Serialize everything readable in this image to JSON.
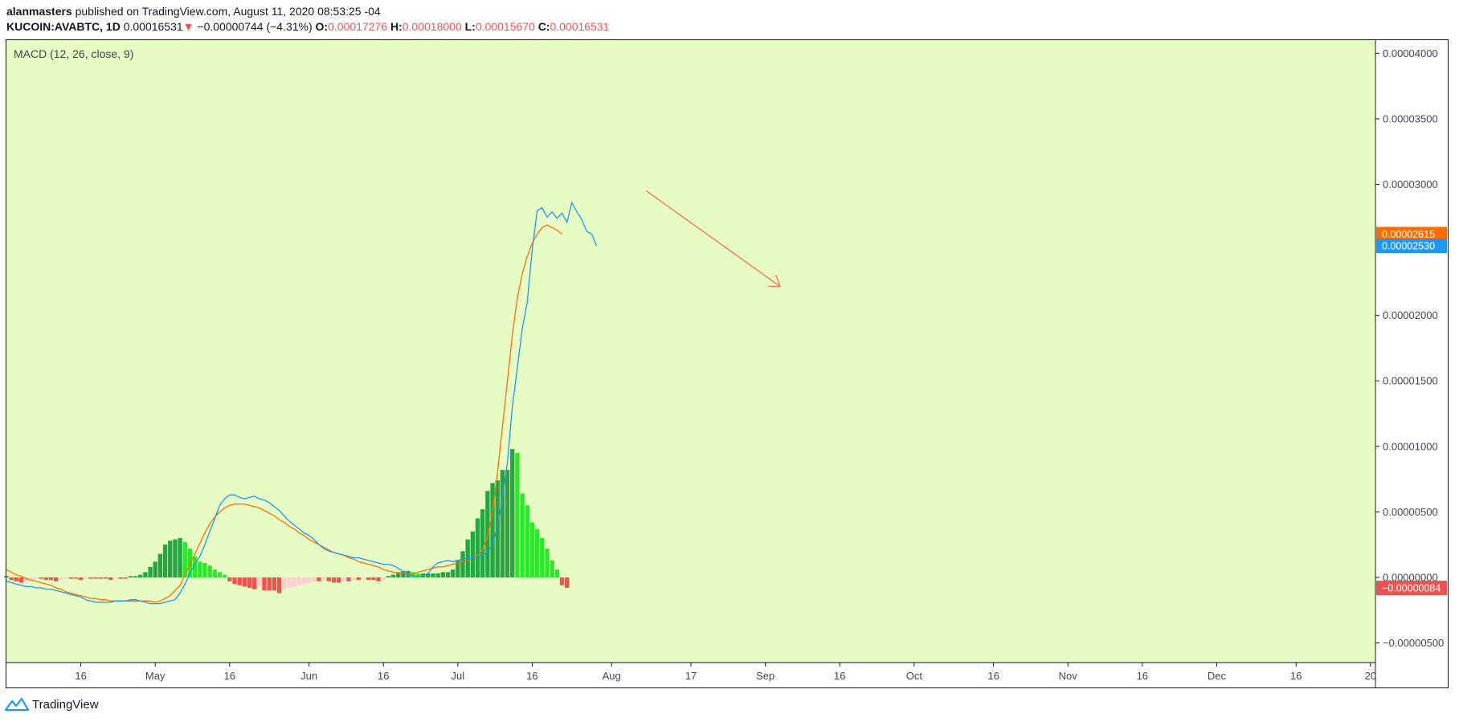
{
  "header": {
    "author": "alanmasters",
    "published_text": "published on TradingView.com, August 11, 2020 08:53:25 -04",
    "symbol": "KUCOIN:AVABTC, 1D",
    "price": "0.00016531",
    "change_arrow": "▼",
    "change": "−0.00000744 (−4.31%)",
    "open_label": "O:",
    "open": "0.00017276",
    "high_label": "H:",
    "high": "0.00018000",
    "low_label": "L:",
    "low": "0.00015670",
    "close_label": "C:",
    "close": "0.00016531"
  },
  "footer": {
    "brand": "TradingView"
  },
  "colors": {
    "background": "#e6fcc4",
    "macd_line": "#2196f3",
    "signal_line": "#ff6d00",
    "hist_up_strong": "#26a641",
    "hist_up_weak": "#2ee62a",
    "hist_down_strong": "#ef5350",
    "hist_down_weak": "#ffcdd2",
    "arrow": "#ef8060"
  },
  "chart_data": {
    "type": "line",
    "indicator": "MACD (12, 26, close, 9)",
    "y_ticks": [
      "0.00004000",
      "0.00003500",
      "0.00003000",
      "0.00002000",
      "0.00001500",
      "0.00001000",
      "0.00000500",
      "0.00000000",
      "−0.00000500"
    ],
    "y_tick_values": [
      4e-05,
      3.5e-05,
      3e-05,
      2e-05,
      1.5e-05,
      1e-05,
      5e-06,
      0,
      -5e-06
    ],
    "ylim": [
      -6.5e-06,
      4.1e-05
    ],
    "x_ticks": [
      "16",
      "May",
      "16",
      "Jun",
      "16",
      "Jul",
      "16",
      "Aug",
      "17",
      "Sep",
      "16",
      "Oct",
      "16",
      "Nov",
      "16",
      "Dec",
      "16",
      "20"
    ],
    "x_tick_days": [
      16,
      31,
      46,
      62,
      77,
      92,
      107,
      123,
      139,
      154,
      169,
      184,
      200,
      215,
      230,
      245,
      261,
      276
    ],
    "x_origin_date": "2020-04-01",
    "xlim_days": [
      1,
      277
    ],
    "last_values": {
      "signal": "0.00002615",
      "macd": "0.00002530",
      "histogram": "−0.00000084"
    },
    "series": [
      {
        "name": "MACD",
        "values": [
          -3e-07,
          -4e-07,
          -5e-07,
          -6e-07,
          -7e-07,
          -7e-07,
          -8e-07,
          -8e-07,
          -9e-07,
          -9e-07,
          -1e-06,
          -1.1e-06,
          -1.2e-06,
          -1.3e-06,
          -1.4e-06,
          -1.5e-06,
          -1.7e-06,
          -1.8e-06,
          -1.9e-06,
          -1.9e-06,
          -1.9e-06,
          -1.9e-06,
          -1.8e-06,
          -1.8e-06,
          -1.8e-06,
          -1.7e-06,
          -1.7e-06,
          -1.8e-06,
          -1.9e-06,
          -2e-06,
          -2e-06,
          -2e-06,
          -1.9e-06,
          -1.8e-06,
          -1.7e-06,
          -1.2e-06,
          -5e-07,
          3e-07,
          1e-06,
          1.6e-06,
          2.5e-06,
          3.5e-06,
          4.5e-06,
          5.5e-06,
          6e-06,
          6.3e-06,
          6.3e-06,
          6.1e-06,
          6e-06,
          6.1e-06,
          6.2e-06,
          6e-06,
          5.9e-06,
          5.7e-06,
          5.4e-06,
          5.1e-06,
          4.7e-06,
          4.3e-06,
          4e-06,
          3.7e-06,
          3.4e-06,
          3.2e-06,
          2.9e-06,
          2.5e-06,
          2.2e-06,
          2e-06,
          1.9e-06,
          1.8e-06,
          1.7e-06,
          1.6e-06,
          1.5e-06,
          1.5e-06,
          1.4e-06,
          1.3e-06,
          1.2e-06,
          1.1e-06,
          1e-06,
          1e-06,
          9e-07,
          7e-07,
          4e-07,
          2e-07,
          1e-07,
          1e-07,
          1e-07,
          3e-07,
          8e-07,
          1.1e-06,
          1.2e-06,
          1.3e-06,
          1.2e-06,
          1.3e-06,
          1.4e-06,
          1.5e-06,
          1.5e-06,
          1.6e-06,
          1.7e-06,
          1.9e-06,
          2.5e-06,
          4e-06,
          6e-06,
          8.8e-06,
          1.3e-05,
          1.6e-05,
          1.9e-05,
          2.1e-05,
          2.5e-05,
          2.8e-05,
          2.82e-05,
          2.75e-05,
          2.79e-05,
          2.74e-05,
          2.78e-05,
          2.71e-05,
          2.86e-05,
          2.79e-05,
          2.73e-05,
          2.64e-05,
          2.62e-05,
          2.53e-05
        ]
      },
      {
        "name": "Signal",
        "values": [
          6e-07,
          4e-07,
          2e-07,
          1e-07,
          -1e-07,
          -2e-07,
          -3e-07,
          -4e-07,
          -5e-07,
          -6e-07,
          -8e-07,
          -9e-07,
          -1.1e-06,
          -1.2e-06,
          -1.3e-06,
          -1.4e-06,
          -1.5e-06,
          -1.6e-06,
          -1.6e-06,
          -1.7e-06,
          -1.7e-06,
          -1.8e-06,
          -1.8e-06,
          -1.8e-06,
          -1.8e-06,
          -1.8e-06,
          -1.8e-06,
          -1.8e-06,
          -1.8e-06,
          -1.8e-06,
          -1.9e-06,
          -1.8e-06,
          -1.6e-06,
          -1.4e-06,
          -1e-06,
          -6e-07,
          2e-07,
          1e-06,
          1.8e-06,
          2.6e-06,
          3.4e-06,
          4.1e-06,
          4.6e-06,
          5e-06,
          5.3e-06,
          5.5e-06,
          5.6e-06,
          5.6e-06,
          5.6e-06,
          5.5e-06,
          5.4e-06,
          5.3e-06,
          5.1e-06,
          4.9e-06,
          4.7e-06,
          4.4e-06,
          4.2e-06,
          3.9e-06,
          3.7e-06,
          3.4e-06,
          3.2e-06,
          2.9e-06,
          2.7e-06,
          2.5e-06,
          2.3e-06,
          2.1e-06,
          1.9e-06,
          1.8e-06,
          1.7e-06,
          1.5e-06,
          1.4e-06,
          1.2e-06,
          1.1e-06,
          1e-06,
          9e-07,
          8e-07,
          6e-07,
          5e-07,
          4e-07,
          3e-07,
          3e-07,
          3e-07,
          3e-07,
          4e-07,
          5e-07,
          6e-07,
          7e-07,
          8e-07,
          8e-07,
          9e-07,
          1e-06,
          1.1e-06,
          1.2e-06,
          1.3e-06,
          1.5e-06,
          1.7e-06,
          2.1e-06,
          3.1e-06,
          5e-06,
          8e-06,
          1.15e-05,
          1.5e-05,
          1.85e-05,
          2.13e-05,
          2.32e-05,
          2.45e-05,
          2.55e-05,
          2.62e-05,
          2.67e-05,
          2.69e-05,
          2.67e-05,
          2.65e-05,
          2.62e-05
        ]
      },
      {
        "name": "Histogram",
        "values": [
          1e-07,
          -2e-07,
          -3e-07,
          -4e-07,
          -3e-07,
          -2e-07,
          -1e-07,
          -1e-07,
          -2e-07,
          -2e-07,
          -3e-07,
          -2e-07,
          -1e-07,
          -1e-07,
          -1e-07,
          -2e-07,
          -1e-07,
          -1e-07,
          -1e-07,
          -1e-07,
          -1e-07,
          -2e-07,
          -1e-07,
          -1e-07,
          -1e-07,
          1e-07,
          1e-07,
          2e-07,
          4e-07,
          8e-07,
          1.2e-06,
          1.8e-06,
          2.5e-06,
          2.8e-06,
          2.9e-06,
          3e-06,
          2.7e-06,
          2.2e-06,
          1.6e-06,
          1.2e-06,
          1.1e-06,
          9e-07,
          6e-07,
          4e-07,
          2e-07,
          -3e-07,
          -5e-07,
          -6e-07,
          -7e-07,
          -8e-07,
          -9e-07,
          -7e-07,
          -1e-06,
          -1e-06,
          -1e-06,
          -1.2e-06,
          -9e-07,
          -8e-07,
          -7e-07,
          -6e-07,
          -5e-07,
          -4e-07,
          -3e-07,
          -3e-07,
          -2e-07,
          -3e-07,
          -4e-07,
          -4e-07,
          -3e-07,
          -3e-07,
          -2e-07,
          -2e-07,
          -1e-07,
          -2e-07,
          -2e-07,
          -3e-07,
          -2e-07,
          1e-07,
          2e-07,
          4e-07,
          5e-07,
          5e-07,
          4e-07,
          3e-07,
          3e-07,
          3e-07,
          3e-07,
          3e-07,
          4e-07,
          4e-07,
          6e-07,
          1.3e-06,
          2e-06,
          2.9e-06,
          3.5e-06,
          4.5e-06,
          5.2e-06,
          6.6e-06,
          7.2e-06,
          7.4e-06,
          8.2e-06,
          8.2e-06,
          9.8e-06,
          9.5e-06,
          6.4e-06,
          5.5e-06,
          4.2e-06,
          3.7e-06,
          3e-06,
          2.2e-06,
          1.3e-06,
          6e-07,
          -6e-07,
          -8e-07
        ],
        "start_index": 0
      }
    ],
    "annotations": [
      {
        "type": "arrow",
        "from": {
          "day": 130,
          "value": 2.95e-05
        },
        "to": {
          "day": 157,
          "value": 2.22e-05
        }
      }
    ]
  }
}
